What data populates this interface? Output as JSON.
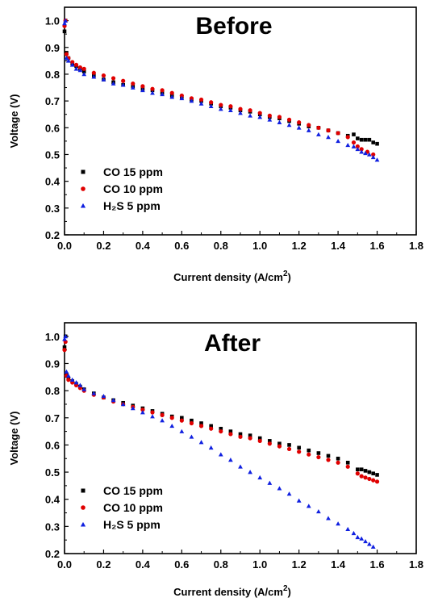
{
  "chart_data": [
    {
      "type": "scatter",
      "title": "Before",
      "xlabel": "Current density (A/cm",
      "xlabel_sup": "2",
      "xlabel_end": ")",
      "ylabel": "Voltage (V)",
      "xlim": [
        0.0,
        1.8
      ],
      "ylim": [
        0.2,
        1.05
      ],
      "xticks": [
        "0.0",
        "0.2",
        "0.4",
        "0.6",
        "0.8",
        "1.0",
        "1.2",
        "1.4",
        "1.6",
        "1.8"
      ],
      "yticks": [
        "0.2",
        "0.3",
        "0.4",
        "0.5",
        "0.6",
        "0.7",
        "0.8",
        "0.9",
        "1.0"
      ],
      "legend_position": "lower-left",
      "grid": false,
      "series": [
        {
          "name": "CO 15 ppm",
          "color": "#000000",
          "marker": "square",
          "x": [
            0.0,
            0.005,
            0.01,
            0.02,
            0.04,
            0.06,
            0.08,
            0.1,
            0.15,
            0.2,
            0.25,
            0.3,
            0.35,
            0.4,
            0.45,
            0.5,
            0.55,
            0.6,
            0.65,
            0.7,
            0.75,
            0.8,
            0.85,
            0.9,
            0.95,
            1.0,
            1.05,
            1.1,
            1.15,
            1.2,
            1.25,
            1.3,
            1.35,
            1.4,
            1.45,
            1.48,
            1.5,
            1.52,
            1.54,
            1.56,
            1.58,
            1.6
          ],
          "y": [
            0.96,
            1.0,
            0.88,
            0.86,
            0.84,
            0.83,
            0.82,
            0.81,
            0.795,
            0.78,
            0.77,
            0.76,
            0.755,
            0.745,
            0.74,
            0.73,
            0.72,
            0.715,
            0.705,
            0.7,
            0.69,
            0.68,
            0.675,
            0.665,
            0.66,
            0.65,
            0.64,
            0.635,
            0.625,
            0.615,
            0.605,
            0.6,
            0.59,
            0.58,
            0.57,
            0.575,
            0.56,
            0.555,
            0.555,
            0.555,
            0.545,
            0.54
          ]
        },
        {
          "name": "CO 10 ppm",
          "color": "#e00000",
          "marker": "circle",
          "x": [
            0.0,
            0.005,
            0.01,
            0.02,
            0.04,
            0.06,
            0.08,
            0.1,
            0.15,
            0.2,
            0.25,
            0.3,
            0.35,
            0.4,
            0.45,
            0.5,
            0.55,
            0.6,
            0.65,
            0.7,
            0.75,
            0.8,
            0.85,
            0.9,
            0.95,
            1.0,
            1.05,
            1.1,
            1.15,
            1.2,
            1.25,
            1.3,
            1.35,
            1.4,
            1.45,
            1.48,
            1.5,
            1.52,
            1.55,
            1.58
          ],
          "y": [
            0.98,
            1.0,
            0.875,
            0.86,
            0.845,
            0.835,
            0.825,
            0.82,
            0.805,
            0.795,
            0.785,
            0.775,
            0.765,
            0.755,
            0.745,
            0.74,
            0.73,
            0.72,
            0.71,
            0.705,
            0.695,
            0.685,
            0.68,
            0.67,
            0.665,
            0.655,
            0.645,
            0.64,
            0.63,
            0.62,
            0.61,
            0.6,
            0.59,
            0.58,
            0.565,
            0.545,
            0.53,
            0.52,
            0.51,
            0.5
          ]
        },
        {
          "name": "H₂S  5  ppm",
          "color": "#1020e0",
          "marker": "triangle",
          "x": [
            0.0,
            0.005,
            0.01,
            0.02,
            0.04,
            0.06,
            0.08,
            0.1,
            0.15,
            0.2,
            0.25,
            0.3,
            0.35,
            0.4,
            0.45,
            0.5,
            0.55,
            0.6,
            0.65,
            0.7,
            0.75,
            0.8,
            0.85,
            0.9,
            0.95,
            1.0,
            1.05,
            1.1,
            1.15,
            1.2,
            1.25,
            1.3,
            1.35,
            1.4,
            1.45,
            1.48,
            1.5,
            1.52,
            1.54,
            1.56,
            1.58,
            1.6
          ],
          "y": [
            0.99,
            1.0,
            0.86,
            0.85,
            0.835,
            0.82,
            0.815,
            0.8,
            0.79,
            0.78,
            0.765,
            0.76,
            0.75,
            0.74,
            0.73,
            0.725,
            0.715,
            0.71,
            0.7,
            0.69,
            0.68,
            0.67,
            0.665,
            0.655,
            0.645,
            0.64,
            0.63,
            0.62,
            0.61,
            0.6,
            0.59,
            0.575,
            0.565,
            0.55,
            0.535,
            0.53,
            0.52,
            0.51,
            0.505,
            0.5,
            0.49,
            0.48
          ]
        }
      ]
    },
    {
      "type": "scatter",
      "title": "After",
      "xlabel": "Current density (A/cm",
      "xlabel_sup": "2",
      "xlabel_end": ")",
      "ylabel": "Voltage (V)",
      "xlim": [
        0.0,
        1.8
      ],
      "ylim": [
        0.2,
        1.05
      ],
      "xticks": [
        "0.0",
        "0.2",
        "0.4",
        "0.6",
        "0.8",
        "1.0",
        "1.2",
        "1.4",
        "1.6",
        "1.8"
      ],
      "yticks": [
        "0.2",
        "0.3",
        "0.4",
        "0.5",
        "0.6",
        "0.7",
        "0.8",
        "0.9",
        "1.0"
      ],
      "legend_position": "lower-left",
      "grid": false,
      "series": [
        {
          "name": "CO 15 ppm",
          "color": "#000000",
          "marker": "square",
          "x": [
            0.0,
            0.005,
            0.01,
            0.02,
            0.04,
            0.06,
            0.08,
            0.1,
            0.15,
            0.2,
            0.25,
            0.3,
            0.35,
            0.4,
            0.45,
            0.5,
            0.55,
            0.6,
            0.65,
            0.7,
            0.75,
            0.8,
            0.85,
            0.9,
            0.95,
            1.0,
            1.05,
            1.1,
            1.15,
            1.2,
            1.25,
            1.3,
            1.35,
            1.4,
            1.45,
            1.5,
            1.52,
            1.54,
            1.56,
            1.58,
            1.6
          ],
          "y": [
            0.96,
            1.0,
            0.86,
            0.845,
            0.835,
            0.825,
            0.815,
            0.805,
            0.79,
            0.775,
            0.765,
            0.755,
            0.745,
            0.735,
            0.725,
            0.715,
            0.705,
            0.7,
            0.69,
            0.68,
            0.67,
            0.66,
            0.65,
            0.64,
            0.635,
            0.625,
            0.615,
            0.605,
            0.6,
            0.59,
            0.58,
            0.57,
            0.56,
            0.55,
            0.535,
            0.51,
            0.51,
            0.505,
            0.5,
            0.495,
            0.49
          ]
        },
        {
          "name": "CO 10 ppm",
          "color": "#e00000",
          "marker": "circle",
          "x": [
            0.0,
            0.005,
            0.01,
            0.02,
            0.04,
            0.06,
            0.08,
            0.1,
            0.15,
            0.2,
            0.25,
            0.3,
            0.35,
            0.4,
            0.45,
            0.5,
            0.55,
            0.6,
            0.65,
            0.7,
            0.75,
            0.8,
            0.85,
            0.9,
            0.95,
            1.0,
            1.05,
            1.1,
            1.15,
            1.2,
            1.25,
            1.3,
            1.35,
            1.4,
            1.45,
            1.5,
            1.52,
            1.54,
            1.56,
            1.58,
            1.6
          ],
          "y": [
            0.95,
            0.98,
            0.855,
            0.84,
            0.83,
            0.82,
            0.81,
            0.8,
            0.785,
            0.775,
            0.76,
            0.75,
            0.74,
            0.73,
            0.72,
            0.71,
            0.7,
            0.69,
            0.68,
            0.67,
            0.66,
            0.65,
            0.64,
            0.63,
            0.625,
            0.615,
            0.605,
            0.595,
            0.585,
            0.575,
            0.565,
            0.555,
            0.545,
            0.535,
            0.52,
            0.495,
            0.485,
            0.48,
            0.475,
            0.47,
            0.465
          ]
        },
        {
          "name": "H₂S  5  ppm",
          "color": "#1020e0",
          "marker": "triangle",
          "x": [
            0.0,
            0.005,
            0.01,
            0.02,
            0.04,
            0.06,
            0.08,
            0.1,
            0.15,
            0.2,
            0.25,
            0.3,
            0.35,
            0.4,
            0.45,
            0.5,
            0.55,
            0.6,
            0.65,
            0.7,
            0.75,
            0.8,
            0.85,
            0.9,
            0.95,
            1.0,
            1.05,
            1.1,
            1.15,
            1.2,
            1.25,
            1.3,
            1.35,
            1.4,
            1.45,
            1.48,
            1.5,
            1.52,
            1.54,
            1.56,
            1.58
          ],
          "y": [
            0.99,
            1.0,
            0.87,
            0.855,
            0.84,
            0.83,
            0.82,
            0.805,
            0.79,
            0.78,
            0.765,
            0.75,
            0.735,
            0.72,
            0.705,
            0.69,
            0.67,
            0.65,
            0.63,
            0.61,
            0.59,
            0.565,
            0.545,
            0.52,
            0.5,
            0.48,
            0.46,
            0.44,
            0.42,
            0.395,
            0.375,
            0.355,
            0.33,
            0.31,
            0.29,
            0.275,
            0.26,
            0.255,
            0.245,
            0.235,
            0.225
          ]
        }
      ]
    }
  ]
}
